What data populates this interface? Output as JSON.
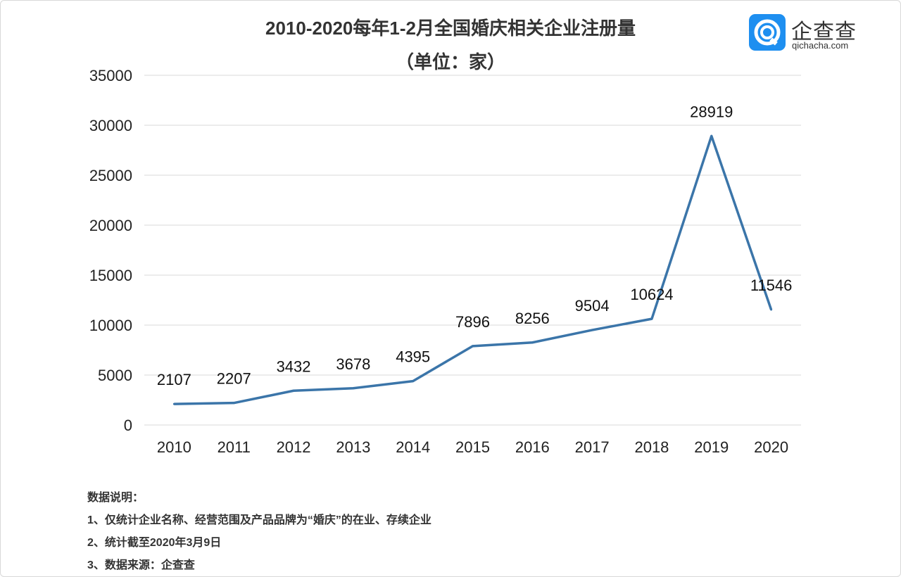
{
  "chart_data": {
    "type": "line",
    "title": "2010-2020每年1-2月全国婚庆相关企业注册量",
    "subtitle": "（单位：家）",
    "categories": [
      "2010",
      "2011",
      "2012",
      "2013",
      "2014",
      "2015",
      "2016",
      "2017",
      "2018",
      "2019",
      "2020"
    ],
    "values": [
      2107,
      2207,
      3432,
      3678,
      4395,
      7896,
      8256,
      9504,
      10624,
      28919,
      11546
    ],
    "ylim": [
      0,
      35000
    ],
    "yticks": [
      0,
      5000,
      10000,
      15000,
      20000,
      25000,
      30000,
      35000
    ],
    "grid": true,
    "legend": "none",
    "line_color": "#3b75a9"
  },
  "logo": {
    "cn": "企查查",
    "en": "qichacha.com",
    "color": "#1e8ff0"
  },
  "notes": {
    "heading": "数据说明：",
    "items": [
      "1、仅统计企业名称、经营范围及产品品牌为“婚庆”的在业、存续企业",
      "2、统计截至2020年3月9日",
      "3、数据来源：企查查"
    ]
  }
}
